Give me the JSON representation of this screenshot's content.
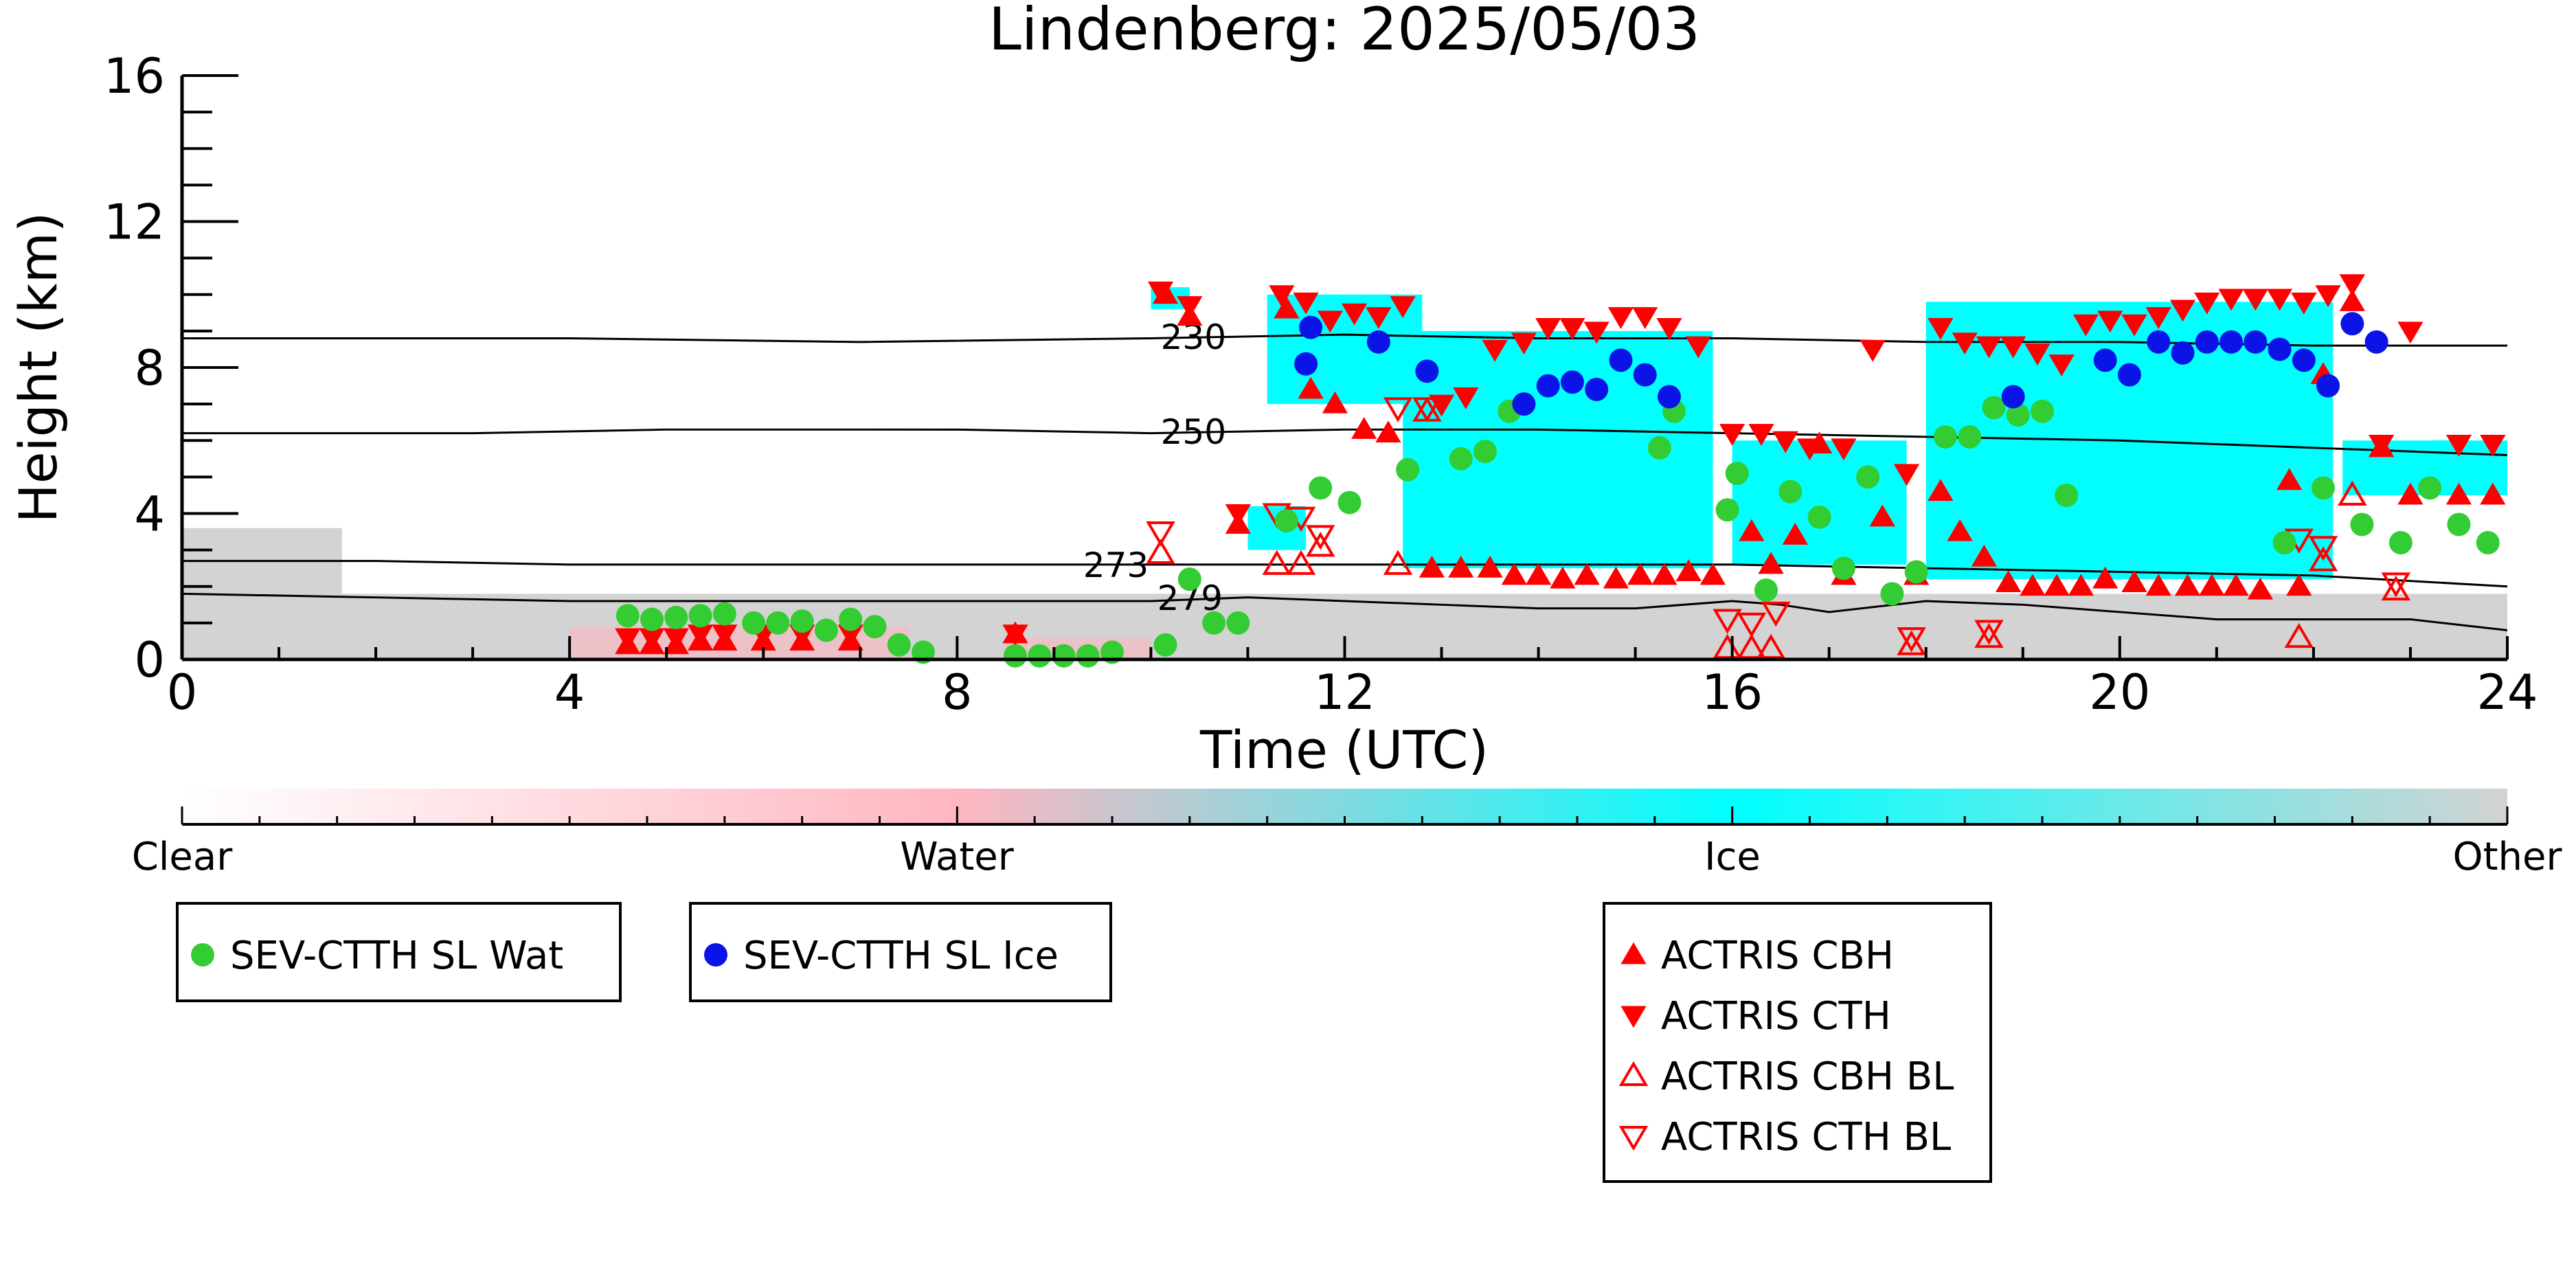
{
  "chart_data": {
    "type": "scatter",
    "title": "Lindenberg: 2025/05/03",
    "xlabel": "Time (UTC)",
    "ylabel": "Height (km)",
    "xlim": [
      0,
      24
    ],
    "ylim": [
      0,
      16
    ],
    "xticks": [
      "0",
      "4",
      "8",
      "12",
      "16",
      "20",
      "24"
    ],
    "yticks": [
      "0",
      "4",
      "8",
      "12",
      "16"
    ],
    "grid": false,
    "colors": {
      "clear": "#ffffff",
      "water": "#ffb6c1",
      "ice": "#00ffff",
      "other": "#d3d3d3",
      "sev_wat": "#33cc33",
      "sev_ice": "#0a14e6",
      "actris": "#ff0000"
    },
    "colorbar": {
      "labels": [
        "Clear",
        "Water",
        "Ice",
        "Other"
      ]
    },
    "isotherms": [
      {
        "label": "230",
        "x": [
          0,
          4,
          7,
          10,
          12,
          14,
          16,
          18,
          20,
          22,
          24
        ],
        "y": [
          8.8,
          8.8,
          8.7,
          8.8,
          8.9,
          8.8,
          8.8,
          8.7,
          8.7,
          8.6,
          8.6
        ]
      },
      {
        "label": "250",
        "x": [
          0,
          3,
          5,
          8,
          10,
          12,
          14,
          16,
          18,
          20,
          22,
          24
        ],
        "y": [
          6.2,
          6.2,
          6.3,
          6.3,
          6.2,
          6.3,
          6.3,
          6.2,
          6.1,
          6.0,
          5.8,
          5.6
        ]
      },
      {
        "label": "273",
        "x": [
          0,
          2,
          4,
          6,
          8,
          10,
          12,
          14,
          16,
          18,
          20,
          22,
          24
        ],
        "y": [
          2.7,
          2.7,
          2.6,
          2.6,
          2.6,
          2.6,
          2.6,
          2.6,
          2.6,
          2.5,
          2.4,
          2.3,
          2.0
        ]
      },
      {
        "label": "279",
        "x": [
          0,
          2,
          4,
          6,
          8,
          10,
          11,
          12,
          13,
          14,
          15,
          16,
          16.5,
          17,
          18,
          19,
          20,
          21,
          22,
          23,
          24
        ],
        "y": [
          1.8,
          1.7,
          1.6,
          1.6,
          1.6,
          1.6,
          1.7,
          1.6,
          1.5,
          1.4,
          1.4,
          1.6,
          1.5,
          1.3,
          1.6,
          1.5,
          1.3,
          1.1,
          1.1,
          1.1,
          0.8
        ]
      }
    ],
    "cloud_regions": [
      {
        "class": "other",
        "x0": 0,
        "x1": 1.65,
        "y0": 0,
        "y1": 3.6
      },
      {
        "class": "other",
        "x0": 1.65,
        "x1": 24,
        "y0": 0,
        "y1": 1.8
      },
      {
        "class": "ice",
        "x0": 11.0,
        "x1": 11.6,
        "y0": 3.0,
        "y1": 4.2
      },
      {
        "class": "ice",
        "x0": 11.2,
        "x1": 12.8,
        "y0": 7.0,
        "y1": 10.0
      },
      {
        "class": "ice",
        "x0": 12.6,
        "x1": 15.8,
        "y0": 2.5,
        "y1": 9.0
      },
      {
        "class": "ice",
        "x0": 16.0,
        "x1": 17.8,
        "y0": 2.6,
        "y1": 6.0
      },
      {
        "class": "ice",
        "x0": 18.0,
        "x1": 22.2,
        "y0": 2.2,
        "y1": 9.8
      },
      {
        "class": "ice",
        "x0": 22.3,
        "x1": 23.5,
        "y0": 4.5,
        "y1": 6.0
      },
      {
        "class": "ice",
        "x0": 23.2,
        "x1": 24.0,
        "y0": 4.5,
        "y1": 6.0
      },
      {
        "class": "ice",
        "x0": 10.0,
        "x1": 10.4,
        "y0": 9.6,
        "y1": 10.2
      },
      {
        "class": "water",
        "x0": 4.0,
        "x1": 7.5,
        "y0": 0,
        "y1": 0.9
      },
      {
        "class": "water",
        "x0": 8.5,
        "x1": 10.0,
        "y0": 0,
        "y1": 0.6
      }
    ],
    "series": [
      {
        "name": "SEV-CTTH SL Wat",
        "marker": "circle",
        "x": [
          4.6,
          4.85,
          5.1,
          5.35,
          5.6,
          5.9,
          6.15,
          6.4,
          6.65,
          6.9,
          7.15,
          7.4,
          7.65,
          8.6,
          8.85,
          9.1,
          9.35,
          9.6,
          10.15,
          10.4,
          10.65,
          10.9,
          11.4,
          11.75,
          12.05,
          12.65,
          13.2,
          13.45,
          13.7,
          15.25,
          15.4,
          15.95,
          16.05,
          16.35,
          16.6,
          16.9,
          17.15,
          17.4,
          17.65,
          17.9,
          18.2,
          18.45,
          18.7,
          18.95,
          19.2,
          19.45,
          21.7,
          22.1,
          22.5,
          22.9,
          23.2,
          23.5,
          23.8
        ],
        "y": [
          1.2,
          1.1,
          1.15,
          1.2,
          1.25,
          1.0,
          1.0,
          1.05,
          0.8,
          1.1,
          0.9,
          0.4,
          0.2,
          0.1,
          0.1,
          0.1,
          0.1,
          0.2,
          0.4,
          2.2,
          1.0,
          1.0,
          3.8,
          4.7,
          4.3,
          5.2,
          5.5,
          5.7,
          6.8,
          5.8,
          6.8,
          4.1,
          5.1,
          1.9,
          4.6,
          3.9,
          2.5,
          5.0,
          1.8,
          2.4,
          6.1,
          6.1,
          6.9,
          6.7,
          6.8,
          4.5,
          3.2,
          4.7,
          3.7,
          3.2,
          4.7,
          3.7,
          3.2
        ]
      },
      {
        "name": "SEV-CTTH SL Ice",
        "marker": "circle",
        "x": [
          11.6,
          11.65,
          12.35,
          12.85,
          13.85,
          14.1,
          14.35,
          14.6,
          14.85,
          15.1,
          15.35,
          18.9,
          19.85,
          20.1,
          20.4,
          20.65,
          20.9,
          21.15,
          21.4,
          21.65,
          21.9,
          22.15,
          22.4,
          22.65
        ],
        "y": [
          8.1,
          9.1,
          8.7,
          7.9,
          7.0,
          7.5,
          7.6,
          7.4,
          8.2,
          7.8,
          7.2,
          7.2,
          8.2,
          7.8,
          8.7,
          8.4,
          8.7,
          8.7,
          8.7,
          8.5,
          8.2,
          7.5,
          9.2,
          8.7
        ]
      },
      {
        "name": "ACTRIS CBH",
        "marker": "triangle-up",
        "x": [
          4.6,
          4.85,
          5.1,
          5.35,
          5.6,
          6.0,
          6.4,
          6.9,
          8.6,
          10.15,
          10.4,
          10.9,
          11.4,
          11.65,
          11.9,
          12.2,
          12.45,
          12.9,
          13.2,
          13.5,
          13.75,
          14.0,
          14.25,
          14.5,
          14.8,
          15.05,
          15.3,
          15.55,
          15.8,
          16.2,
          16.4,
          16.65,
          16.9,
          17.15,
          17.55,
          17.9,
          18.15,
          18.35,
          18.6,
          18.85,
          19.1,
          19.35,
          19.6,
          19.85,
          20.15,
          20.4,
          20.7,
          20.95,
          21.2,
          21.45,
          21.75,
          21.85,
          22.1,
          22.4,
          22.7,
          23.0,
          23.5,
          23.85
        ],
        "y": [
          0.4,
          0.4,
          0.4,
          0.5,
          0.5,
          0.5,
          0.5,
          0.5,
          0.7,
          10.0,
          9.4,
          3.7,
          9.6,
          7.4,
          7.0,
          6.3,
          6.2,
          2.5,
          2.5,
          2.5,
          2.3,
          2.3,
          2.2,
          2.3,
          2.2,
          2.3,
          2.3,
          2.4,
          2.3,
          3.5,
          2.6,
          3.4,
          5.9,
          2.3,
          3.9,
          2.3,
          4.6,
          3.5,
          2.8,
          2.1,
          2.0,
          2.0,
          2.0,
          2.2,
          2.1,
          2.0,
          2.0,
          2.0,
          2.0,
          1.9,
          4.9,
          2.0,
          7.8,
          9.8,
          5.8,
          4.5,
          4.5,
          4.5
        ]
      },
      {
        "name": "ACTRIS CTH",
        "marker": "triangle-down",
        "x": [
          4.6,
          4.85,
          5.1,
          5.35,
          5.6,
          6.0,
          6.4,
          6.9,
          8.6,
          10.1,
          10.4,
          10.9,
          11.35,
          11.6,
          11.85,
          12.1,
          12.35,
          12.6,
          13.0,
          13.25,
          13.55,
          13.85,
          14.1,
          14.35,
          14.6,
          14.85,
          15.1,
          15.35,
          15.65,
          16.0,
          16.3,
          16.55,
          16.8,
          17.15,
          17.45,
          17.8,
          18.15,
          18.4,
          18.65,
          18.9,
          19.15,
          19.4,
          19.65,
          19.9,
          20.15,
          20.4,
          20.65,
          20.9,
          21.15,
          21.4,
          21.65,
          21.9,
          22.15,
          22.4,
          22.7,
          23.0,
          23.5,
          23.85
        ],
        "y": [
          0.6,
          0.6,
          0.6,
          0.7,
          0.7,
          0.7,
          0.7,
          0.7,
          0.7,
          10.1,
          9.7,
          4.0,
          10.0,
          9.8,
          9.3,
          9.5,
          9.4,
          9.7,
          7.0,
          7.2,
          8.5,
          8.7,
          9.1,
          9.1,
          9.0,
          9.4,
          9.4,
          9.1,
          8.6,
          6.2,
          6.2,
          6.0,
          5.8,
          5.8,
          8.5,
          5.1,
          9.1,
          8.7,
          8.6,
          8.6,
          8.4,
          8.1,
          9.2,
          9.3,
          9.2,
          9.4,
          9.6,
          9.8,
          9.9,
          9.9,
          9.9,
          9.8,
          10.0,
          10.3,
          5.9,
          9.0,
          5.9,
          5.9
        ]
      },
      {
        "name": "ACTRIS CBH BL",
        "marker": "triangle-up-open",
        "x": [
          10.1,
          11.3,
          11.55,
          11.75,
          12.55,
          12.85,
          15.95,
          16.2,
          16.4,
          17.85,
          18.65,
          21.85,
          22.1,
          22.4,
          22.85
        ],
        "y": [
          2.9,
          2.6,
          2.6,
          3.1,
          2.6,
          6.8,
          0.3,
          0.3,
          0.3,
          0.4,
          0.6,
          0.6,
          2.7,
          4.5,
          1.9
        ]
      },
      {
        "name": "ACTRIS CTH BL",
        "marker": "triangle-down-open",
        "x": [
          10.1,
          11.3,
          11.55,
          11.75,
          12.55,
          12.85,
          15.95,
          16.2,
          16.45,
          17.85,
          18.65,
          21.85,
          22.1,
          22.85
        ],
        "y": [
          3.5,
          4.0,
          3.9,
          3.4,
          6.9,
          6.9,
          1.1,
          1.0,
          1.3,
          0.6,
          0.8,
          3.3,
          3.1,
          2.1
        ]
      }
    ],
    "legend": [
      {
        "label": "SEV-CTTH SL Wat",
        "marker": "circle",
        "color": "#33cc33"
      },
      {
        "label": "SEV-CTTH SL Ice",
        "marker": "circle",
        "color": "#0a14e6"
      },
      {
        "label": "ACTRIS CBH",
        "marker": "triangle-up",
        "color": "#ff0000"
      },
      {
        "label": "ACTRIS CTH",
        "marker": "triangle-down",
        "color": "#ff0000"
      },
      {
        "label": "ACTRIS CBH BL",
        "marker": "triangle-up-open",
        "color": "#ff0000"
      },
      {
        "label": "ACTRIS CTH BL",
        "marker": "triangle-down-open",
        "color": "#ff0000"
      }
    ],
    "legend_placement": "bottom"
  }
}
